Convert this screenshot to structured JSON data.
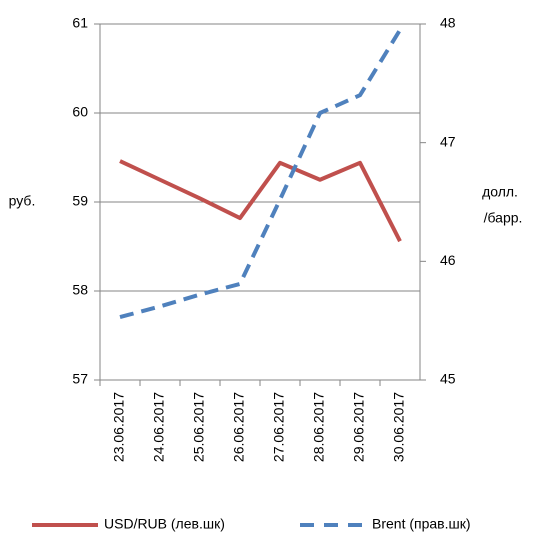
{
  "chart_data": {
    "type": "line",
    "ylabel": "руб.",
    "y2label": [
      "долл.",
      "/барр."
    ],
    "categories": [
      "23.06.2017",
      "24.06.2017",
      "25.06.2017",
      "26.06.2017",
      "27.06.2017",
      "28.06.2017",
      "29.06.2017",
      "30.06.2017"
    ],
    "series": [
      {
        "name": "USD/RUB (лев.шк)",
        "color": "#c0504d",
        "values": [
          59.46,
          59.25,
          59.04,
          58.82,
          59.44,
          59.25,
          59.44,
          58.56
        ]
      },
      {
        "name": "Brent (прав.шк)",
        "color": "#4f81bd",
        "axis": "y2",
        "dashed": true,
        "values": [
          45.53,
          45.62,
          45.72,
          45.81,
          46.52,
          47.25,
          47.4,
          47.95
        ]
      }
    ],
    "ylim": [
      57,
      61
    ],
    "yticks": [
      57,
      58,
      59,
      60,
      61
    ],
    "y2lim": [
      45,
      48
    ],
    "y2ticks": [
      45,
      46,
      47,
      48
    ],
    "grid": true,
    "legend": "bottom"
  }
}
